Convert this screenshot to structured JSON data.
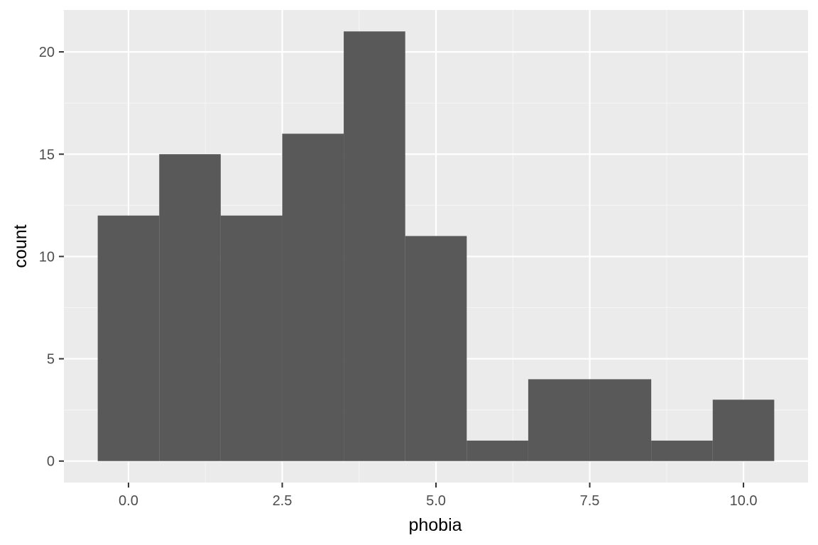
{
  "colors": {
    "panel": "#ebebeb",
    "grid_major": "#ffffff",
    "grid_minor": "#f5f5f5",
    "bar": "#595959",
    "tick": "#333333"
  },
  "chart_data": {
    "type": "bar",
    "subtype": "histogram",
    "title": "",
    "xlabel": "phobia",
    "ylabel": "count",
    "bin_width": 1,
    "bins": [
      {
        "center": 0,
        "count": 12
      },
      {
        "center": 1,
        "count": 15
      },
      {
        "center": 2,
        "count": 12
      },
      {
        "center": 3,
        "count": 16
      },
      {
        "center": 4,
        "count": 21
      },
      {
        "center": 5,
        "count": 11
      },
      {
        "center": 6,
        "count": 1
      },
      {
        "center": 7,
        "count": 4
      },
      {
        "center": 8,
        "count": 4
      },
      {
        "center": 9,
        "count": 1
      },
      {
        "center": 10,
        "count": 3
      }
    ],
    "xlim": [
      -1.05,
      11.05
    ],
    "ylim": [
      -1.05,
      22.05
    ],
    "x_ticks": [
      0,
      2.5,
      5,
      7.5,
      10
    ],
    "x_tick_labels": [
      "0.0",
      "2.5",
      "5.0",
      "7.5",
      "10.0"
    ],
    "y_ticks": [
      0,
      5,
      10,
      15,
      20
    ],
    "y_tick_labels": [
      "0",
      "5",
      "10",
      "15",
      "20"
    ],
    "grid": true,
    "legend": "none"
  }
}
